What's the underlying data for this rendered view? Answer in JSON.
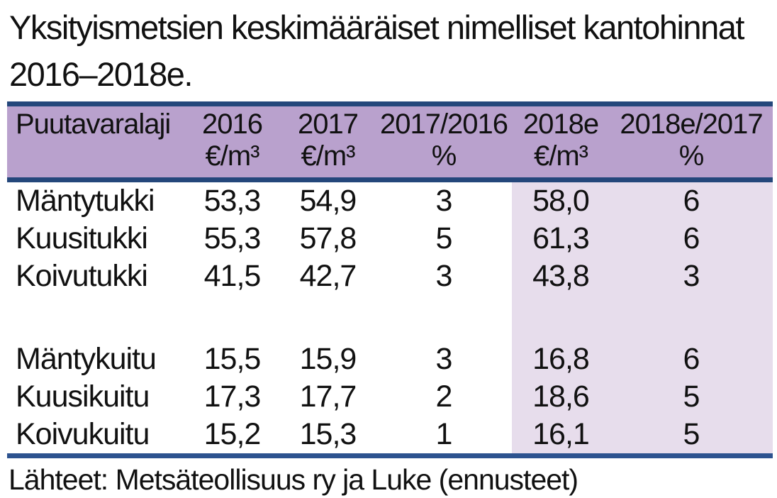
{
  "title": "Yksityismetsien keskimääräiset nimelliset kantohinnat 2016–2018e.",
  "table": {
    "columns": [
      {
        "label": "Puutavaralaji",
        "unit": ""
      },
      {
        "label": "2016",
        "unit": "€/m³"
      },
      {
        "label": "2017",
        "unit": "€/m³"
      },
      {
        "label": "2017/2016",
        "unit": "%"
      },
      {
        "label": "2018e",
        "unit": "€/m³"
      },
      {
        "label": "2018e/2017",
        "unit": "%"
      }
    ],
    "rows": [
      {
        "cells": [
          "Mäntytukki",
          "53,3",
          "54,9",
          "3",
          "58,0",
          "6"
        ]
      },
      {
        "cells": [
          "Kuusitukki",
          "55,3",
          "57,8",
          "5",
          "61,3",
          "6"
        ]
      },
      {
        "cells": [
          "Koivutukki",
          "41,5",
          "42,7",
          "3",
          "43,8",
          "3"
        ]
      },
      {
        "spacer": true,
        "cells": [
          "",
          "",
          "",
          "",
          "",
          ""
        ]
      },
      {
        "cells": [
          "Mäntykuitu",
          "15,5",
          "15,9",
          "3",
          "16,8",
          "6"
        ]
      },
      {
        "cells": [
          "Kuusikuitu",
          "17,3",
          "17,7",
          "2",
          "18,6",
          "5"
        ]
      },
      {
        "cells": [
          "Koivukuitu",
          "15,2",
          "15,3",
          "1",
          "16,1",
          "5"
        ]
      }
    ]
  },
  "footer": "Lähteet: Metsäteollisuus ry ja Luke (ennusteet)",
  "colors": {
    "header_bg": "#b9a1cd",
    "highlight_bg": "#e7ddec",
    "border_top": "#24477b",
    "border_bottom": "#2d538f",
    "text": "#111111"
  },
  "chart_data": {
    "type": "table",
    "title": "Yksityismetsien keskimääräiset nimelliset kantohinnat 2016–2018e.",
    "columns": [
      "Puutavaralaji",
      "2016 €/m³",
      "2017 €/m³",
      "2017/2016 %",
      "2018e €/m³",
      "2018e/2017 %"
    ],
    "rows": [
      [
        "Mäntytukki",
        53.3,
        54.9,
        3,
        58.0,
        6
      ],
      [
        "Kuusitukki",
        55.3,
        57.8,
        5,
        61.3,
        6
      ],
      [
        "Koivutukki",
        41.5,
        42.7,
        3,
        43.8,
        3
      ],
      [
        "Mäntykuitu",
        15.5,
        15.9,
        3,
        16.8,
        6
      ],
      [
        "Kuusikuitu",
        17.3,
        17.7,
        2,
        18.6,
        5
      ],
      [
        "Koivukuitu",
        15.2,
        15.3,
        1,
        16.1,
        5
      ]
    ],
    "highlighted_columns": [
      "2018e €/m³",
      "2018e/2017 %"
    ],
    "source": "Lähteet: Metsäteollisuus ry ja Luke (ennusteet)",
    "notes": "Decimal comma notation; 2018e columns are forecast values shaded lavender"
  }
}
